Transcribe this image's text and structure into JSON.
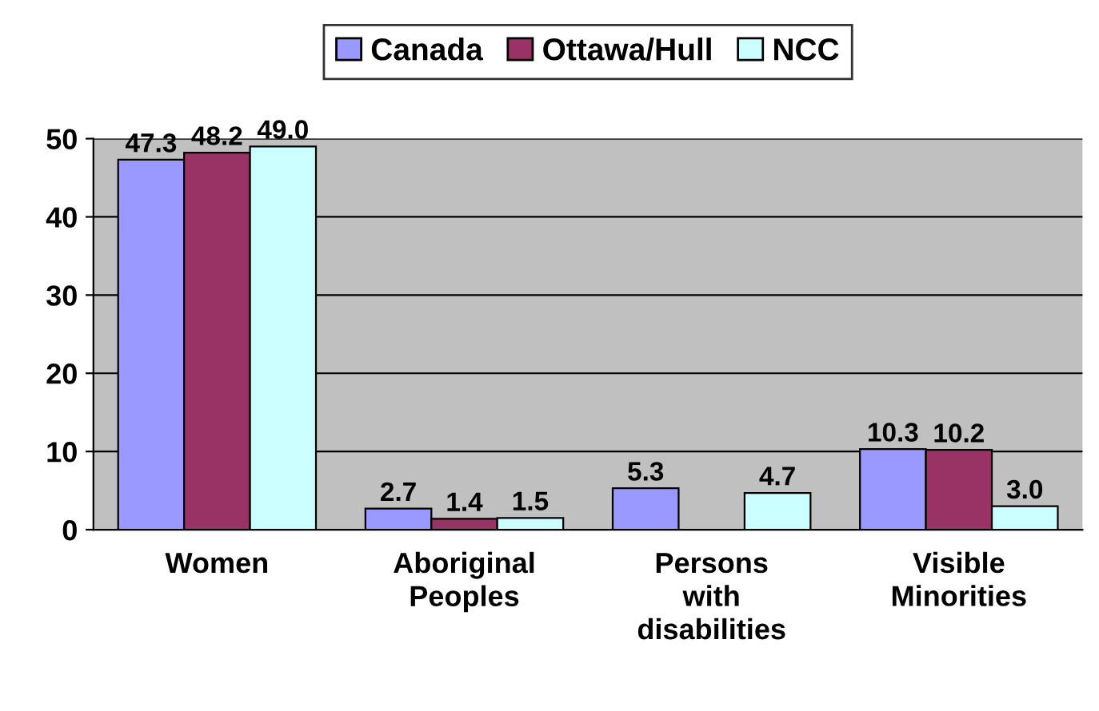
{
  "chart_data": {
    "type": "bar",
    "categories": [
      "Women",
      "Aboriginal\nPeoples",
      "Persons\nwith\ndisabilities",
      "Visible\nMinorities"
    ],
    "series": [
      {
        "name": "Canada",
        "color": "#9999ff",
        "values": [
          47.3,
          2.7,
          5.3,
          10.3
        ],
        "value_labels": [
          "47.3",
          "2.7",
          "5.3",
          "10.3"
        ]
      },
      {
        "name": "Ottawa/Hull",
        "color": "#993366",
        "values": [
          48.2,
          1.4,
          null,
          10.2
        ],
        "value_labels": [
          "48.2",
          "1.4",
          null,
          "10.2"
        ]
      },
      {
        "name": "NCC",
        "color": "#ccffff",
        "values": [
          49.0,
          1.5,
          4.7,
          3.0
        ],
        "value_labels": [
          "49.0",
          "1.5",
          "4.7",
          "3.0"
        ]
      }
    ],
    "ylim": [
      0,
      50
    ],
    "yticks": [
      0,
      10,
      20,
      30,
      40,
      50
    ],
    "grid": "y",
    "legend": "top"
  }
}
